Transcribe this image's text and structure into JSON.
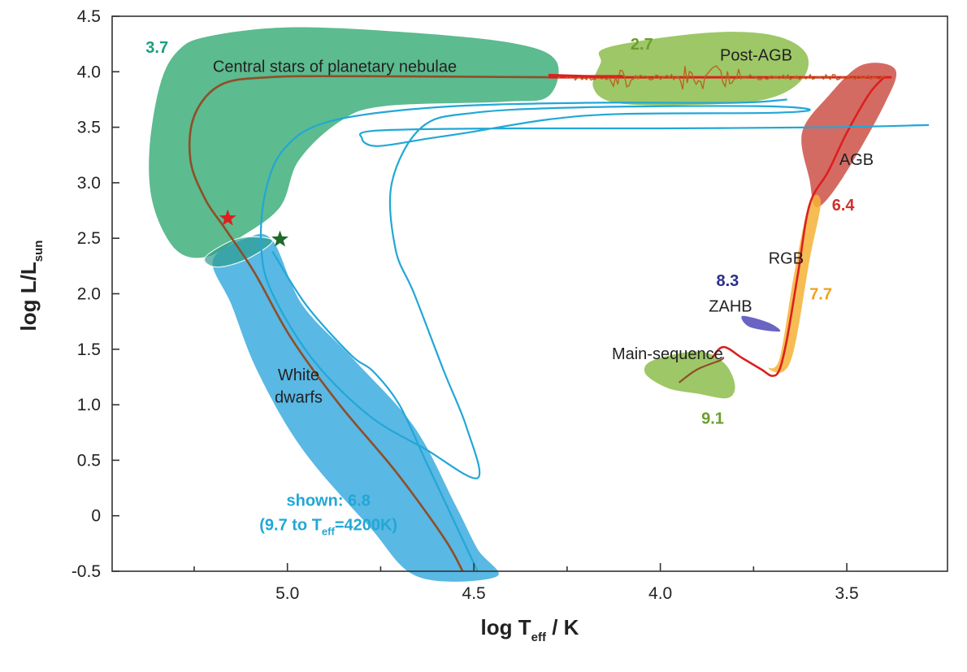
{
  "chart_data": {
    "type": "scatter",
    "xlabel": "log T",
    "xlabel_sub": "eff",
    "xlabel_tail": "/ K",
    "ylabel": "log L/L",
    "ylabel_sub": "sun",
    "xlim": [
      5.47,
      3.23
    ],
    "ylim": [
      -0.5,
      4.5
    ],
    "x_inverted": true,
    "x_ticks": [
      5.0,
      4.5,
      4.0,
      3.5
    ],
    "x_tick_labels": [
      "5.0",
      "4.5",
      "4.0",
      "3.5"
    ],
    "y_ticks": [
      -0.5,
      0,
      0.5,
      1.0,
      1.5,
      2.0,
      2.5,
      3.0,
      3.5,
      4.0,
      4.5
    ],
    "y_tick_labels": [
      "-0.5",
      "0",
      "0.5",
      "1.0",
      "1.5",
      "2.0",
      "2.5",
      "3.0",
      "3.5",
      "4.0",
      "4.5"
    ],
    "grid": false,
    "colors": {
      "cspn": "#45b27f",
      "white_dwarfs": "#42aee0",
      "post_agb": "#8dbd4c",
      "agb": "#c9463c",
      "rgb": "#f5b236",
      "main_sequence": "#8dbd4c",
      "zahb": "#6a64c3",
      "track_red": "#dd1f1f",
      "track_brown": "#8f4e28",
      "track_cyan": "#22a7d6",
      "label_teal": "#1a9e7e",
      "label_green": "#6a9e2d",
      "label_red": "#d0312d",
      "label_orange": "#f0a21c",
      "label_navy": "#2a2e8c",
      "label_cyan": "#22a7d6"
    },
    "regions": [
      {
        "name": "Central stars of planetary nebulae",
        "age": "3.7",
        "color": "cspn",
        "age_color": "label_teal"
      },
      {
        "name": "Post-AGB",
        "age": "2.7",
        "color": "post_agb",
        "age_color": "label_green"
      },
      {
        "name": "AGB",
        "age": "6.4",
        "color": "agb",
        "age_color": "label_red"
      },
      {
        "name": "RGB",
        "age": "7.7",
        "color": "rgb",
        "age_color": "label_orange"
      },
      {
        "name": "ZAHB",
        "age": "8.3",
        "color": "zahb",
        "age_color": "label_navy"
      },
      {
        "name": "Main-sequence",
        "age": "9.1",
        "color": "main_sequence",
        "age_color": "label_green"
      },
      {
        "name": "White\ndwarfs",
        "age": "shown: 6.8",
        "age_line2": "(9.7 to T",
        "age_line2_sub": "eff",
        "age_line2_tail": "=4200K)",
        "color": "white_dwarfs",
        "age_color": "label_cyan"
      }
    ],
    "markers": [
      {
        "type": "star",
        "x": 5.16,
        "y": 2.68,
        "color": "track_red"
      },
      {
        "type": "star",
        "x": 5.02,
        "y": 2.49,
        "color": "#1f6a2b"
      }
    ]
  }
}
